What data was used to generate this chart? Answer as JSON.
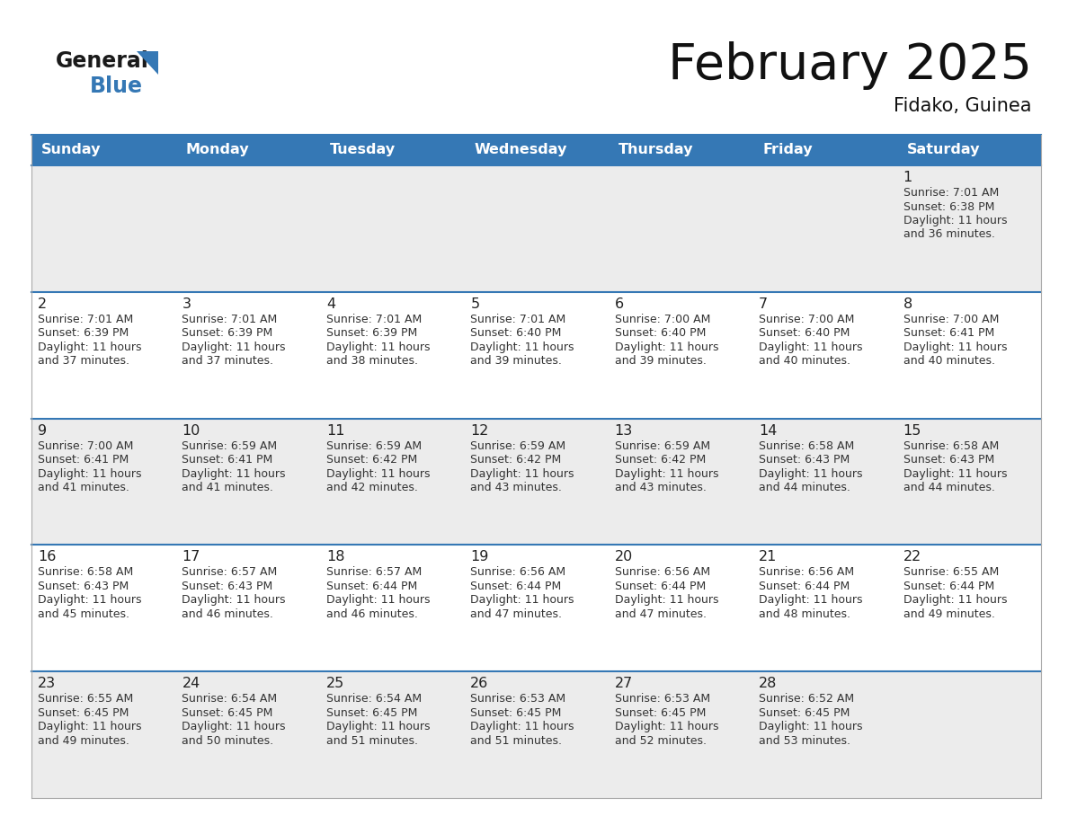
{
  "title": "February 2025",
  "subtitle": "Fidako, Guinea",
  "header_color": "#3578b5",
  "header_text_color": "#FFFFFF",
  "days_of_week": [
    "Sunday",
    "Monday",
    "Tuesday",
    "Wednesday",
    "Thursday",
    "Friday",
    "Saturday"
  ],
  "background_color": "#FFFFFF",
  "day_num_color": "#222222",
  "text_color": "#333333",
  "border_color": "#3578b5",
  "sep_line_color": "#3578b5",
  "calendar_data": [
    [
      null,
      null,
      null,
      null,
      null,
      null,
      {
        "day": 1,
        "sunrise": "7:01 AM",
        "sunset": "6:38 PM",
        "dl1": "Daylight: 11 hours",
        "dl2": "and 36 minutes."
      }
    ],
    [
      {
        "day": 2,
        "sunrise": "7:01 AM",
        "sunset": "6:39 PM",
        "dl1": "Daylight: 11 hours",
        "dl2": "and 37 minutes."
      },
      {
        "day": 3,
        "sunrise": "7:01 AM",
        "sunset": "6:39 PM",
        "dl1": "Daylight: 11 hours",
        "dl2": "and 37 minutes."
      },
      {
        "day": 4,
        "sunrise": "7:01 AM",
        "sunset": "6:39 PM",
        "dl1": "Daylight: 11 hours",
        "dl2": "and 38 minutes."
      },
      {
        "day": 5,
        "sunrise": "7:01 AM",
        "sunset": "6:40 PM",
        "dl1": "Daylight: 11 hours",
        "dl2": "and 39 minutes."
      },
      {
        "day": 6,
        "sunrise": "7:00 AM",
        "sunset": "6:40 PM",
        "dl1": "Daylight: 11 hours",
        "dl2": "and 39 minutes."
      },
      {
        "day": 7,
        "sunrise": "7:00 AM",
        "sunset": "6:40 PM",
        "dl1": "Daylight: 11 hours",
        "dl2": "and 40 minutes."
      },
      {
        "day": 8,
        "sunrise": "7:00 AM",
        "sunset": "6:41 PM",
        "dl1": "Daylight: 11 hours",
        "dl2": "and 40 minutes."
      }
    ],
    [
      {
        "day": 9,
        "sunrise": "7:00 AM",
        "sunset": "6:41 PM",
        "dl1": "Daylight: 11 hours",
        "dl2": "and 41 minutes."
      },
      {
        "day": 10,
        "sunrise": "6:59 AM",
        "sunset": "6:41 PM",
        "dl1": "Daylight: 11 hours",
        "dl2": "and 41 minutes."
      },
      {
        "day": 11,
        "sunrise": "6:59 AM",
        "sunset": "6:42 PM",
        "dl1": "Daylight: 11 hours",
        "dl2": "and 42 minutes."
      },
      {
        "day": 12,
        "sunrise": "6:59 AM",
        "sunset": "6:42 PM",
        "dl1": "Daylight: 11 hours",
        "dl2": "and 43 minutes."
      },
      {
        "day": 13,
        "sunrise": "6:59 AM",
        "sunset": "6:42 PM",
        "dl1": "Daylight: 11 hours",
        "dl2": "and 43 minutes."
      },
      {
        "day": 14,
        "sunrise": "6:58 AM",
        "sunset": "6:43 PM",
        "dl1": "Daylight: 11 hours",
        "dl2": "and 44 minutes."
      },
      {
        "day": 15,
        "sunrise": "6:58 AM",
        "sunset": "6:43 PM",
        "dl1": "Daylight: 11 hours",
        "dl2": "and 44 minutes."
      }
    ],
    [
      {
        "day": 16,
        "sunrise": "6:58 AM",
        "sunset": "6:43 PM",
        "dl1": "Daylight: 11 hours",
        "dl2": "and 45 minutes."
      },
      {
        "day": 17,
        "sunrise": "6:57 AM",
        "sunset": "6:43 PM",
        "dl1": "Daylight: 11 hours",
        "dl2": "and 46 minutes."
      },
      {
        "day": 18,
        "sunrise": "6:57 AM",
        "sunset": "6:44 PM",
        "dl1": "Daylight: 11 hours",
        "dl2": "and 46 minutes."
      },
      {
        "day": 19,
        "sunrise": "6:56 AM",
        "sunset": "6:44 PM",
        "dl1": "Daylight: 11 hours",
        "dl2": "and 47 minutes."
      },
      {
        "day": 20,
        "sunrise": "6:56 AM",
        "sunset": "6:44 PM",
        "dl1": "Daylight: 11 hours",
        "dl2": "and 47 minutes."
      },
      {
        "day": 21,
        "sunrise": "6:56 AM",
        "sunset": "6:44 PM",
        "dl1": "Daylight: 11 hours",
        "dl2": "and 48 minutes."
      },
      {
        "day": 22,
        "sunrise": "6:55 AM",
        "sunset": "6:44 PM",
        "dl1": "Daylight: 11 hours",
        "dl2": "and 49 minutes."
      }
    ],
    [
      {
        "day": 23,
        "sunrise": "6:55 AM",
        "sunset": "6:45 PM",
        "dl1": "Daylight: 11 hours",
        "dl2": "and 49 minutes."
      },
      {
        "day": 24,
        "sunrise": "6:54 AM",
        "sunset": "6:45 PM",
        "dl1": "Daylight: 11 hours",
        "dl2": "and 50 minutes."
      },
      {
        "day": 25,
        "sunrise": "6:54 AM",
        "sunset": "6:45 PM",
        "dl1": "Daylight: 11 hours",
        "dl2": "and 51 minutes."
      },
      {
        "day": 26,
        "sunrise": "6:53 AM",
        "sunset": "6:45 PM",
        "dl1": "Daylight: 11 hours",
        "dl2": "and 51 minutes."
      },
      {
        "day": 27,
        "sunrise": "6:53 AM",
        "sunset": "6:45 PM",
        "dl1": "Daylight: 11 hours",
        "dl2": "and 52 minutes."
      },
      {
        "day": 28,
        "sunrise": "6:52 AM",
        "sunset": "6:45 PM",
        "dl1": "Daylight: 11 hours",
        "dl2": "and 53 minutes."
      },
      null
    ]
  ]
}
